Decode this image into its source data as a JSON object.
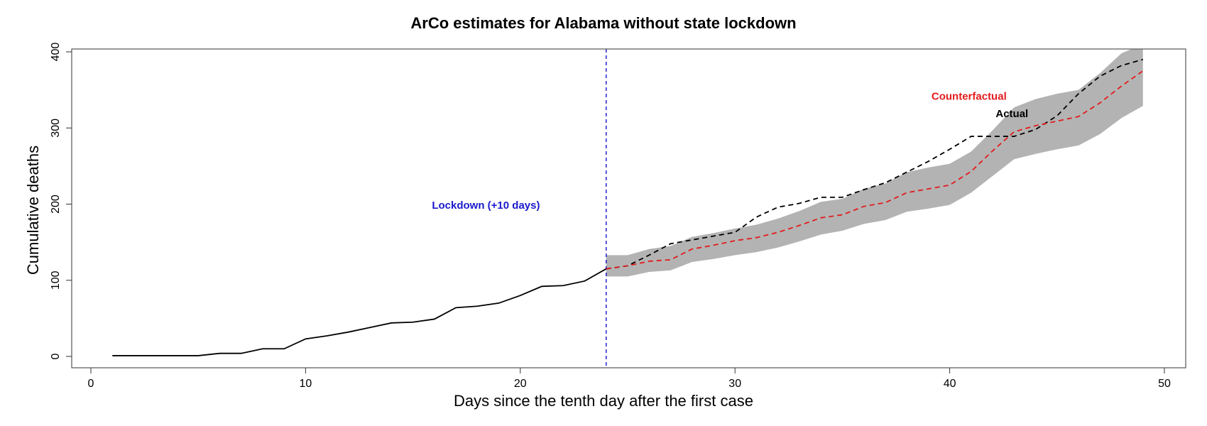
{
  "chart_data": {
    "type": "line",
    "title": "ArCo estimates for Alabama without state lockdown",
    "xlabel": "Days since the tenth day after the first case",
    "ylabel": "Cumulative deaths",
    "xlim": [
      0,
      50
    ],
    "ylim": [
      0,
      400
    ],
    "xticks": [
      0,
      10,
      20,
      30,
      40,
      50
    ],
    "yticks": [
      0,
      100,
      200,
      300,
      400
    ],
    "grid": false,
    "colors": {
      "observed": "#000000",
      "actual": "#000000",
      "counterfactual": "#e31a1c",
      "band": "#b3b3b3",
      "lockdown": "#2222cc"
    },
    "lockdown_x": 24,
    "annotations": [
      {
        "text": "Lockdown (+10 days)",
        "x": 18.4,
        "y": 194,
        "color": "#1a1acc"
      },
      {
        "text": "Counterfactual",
        "x": 40.9,
        "y": 337,
        "color": "#e31a1c"
      },
      {
        "text": "Actual",
        "x": 42.9,
        "y": 314,
        "color": "#000000"
      }
    ],
    "series": [
      {
        "style": "solid",
        "x": [
          1,
          2,
          3,
          4,
          5,
          6,
          7,
          8,
          9,
          10,
          11,
          12,
          13,
          14,
          15,
          16,
          17,
          18,
          19,
          20,
          21,
          22,
          23,
          24
        ],
        "values": [
          1,
          1,
          1,
          1,
          1,
          4,
          4,
          10,
          10,
          23,
          27,
          32,
          38,
          44,
          45,
          49,
          64,
          66,
          70,
          80,
          92,
          93,
          99,
          115
        ]
      },
      {
        "name": "Actual",
        "style": "dashed",
        "x": [
          24,
          25,
          26,
          27,
          28,
          29,
          30,
          31,
          32,
          33,
          34,
          35,
          36,
          37,
          38,
          39,
          40,
          41,
          42,
          43,
          44,
          45,
          46,
          47,
          48,
          49
        ],
        "values": [
          115,
          119,
          133,
          148,
          153,
          158,
          163,
          183,
          196,
          201,
          209,
          209,
          219,
          228,
          242,
          256,
          272,
          289,
          289,
          289,
          298,
          316,
          345,
          368,
          382,
          390
        ]
      },
      {
        "name": "Counterfactual",
        "style": "dashed",
        "x": [
          24,
          25,
          26,
          27,
          28,
          29,
          30,
          31,
          32,
          33,
          34,
          35,
          36,
          37,
          38,
          39,
          40,
          41,
          42,
          43,
          44,
          45,
          46,
          47,
          48,
          49
        ],
        "values": [
          115,
          119,
          125,
          127,
          141,
          146,
          152,
          156,
          163,
          172,
          182,
          186,
          197,
          202,
          215,
          220,
          225,
          243,
          270,
          295,
          303,
          309,
          315,
          333,
          355,
          375
        ]
      }
    ],
    "band": {
      "x": [
        24,
        25,
        26,
        27,
        28,
        29,
        30,
        31,
        32,
        33,
        34,
        35,
        36,
        37,
        38,
        39,
        40,
        41,
        42,
        43,
        44,
        45,
        46,
        47,
        48,
        49
      ],
      "lower": [
        105,
        105,
        111,
        113,
        124,
        128,
        133,
        137,
        143,
        151,
        160,
        165,
        174,
        179,
        190,
        194,
        199,
        215,
        237,
        259,
        266,
        272,
        277,
        292,
        313,
        329
      ],
      "upper": [
        133,
        133,
        141,
        145,
        157,
        162,
        168,
        173,
        181,
        191,
        203,
        207,
        220,
        227,
        242,
        248,
        253,
        269,
        297,
        327,
        338,
        345,
        350,
        372,
        398,
        410
      ]
    }
  }
}
